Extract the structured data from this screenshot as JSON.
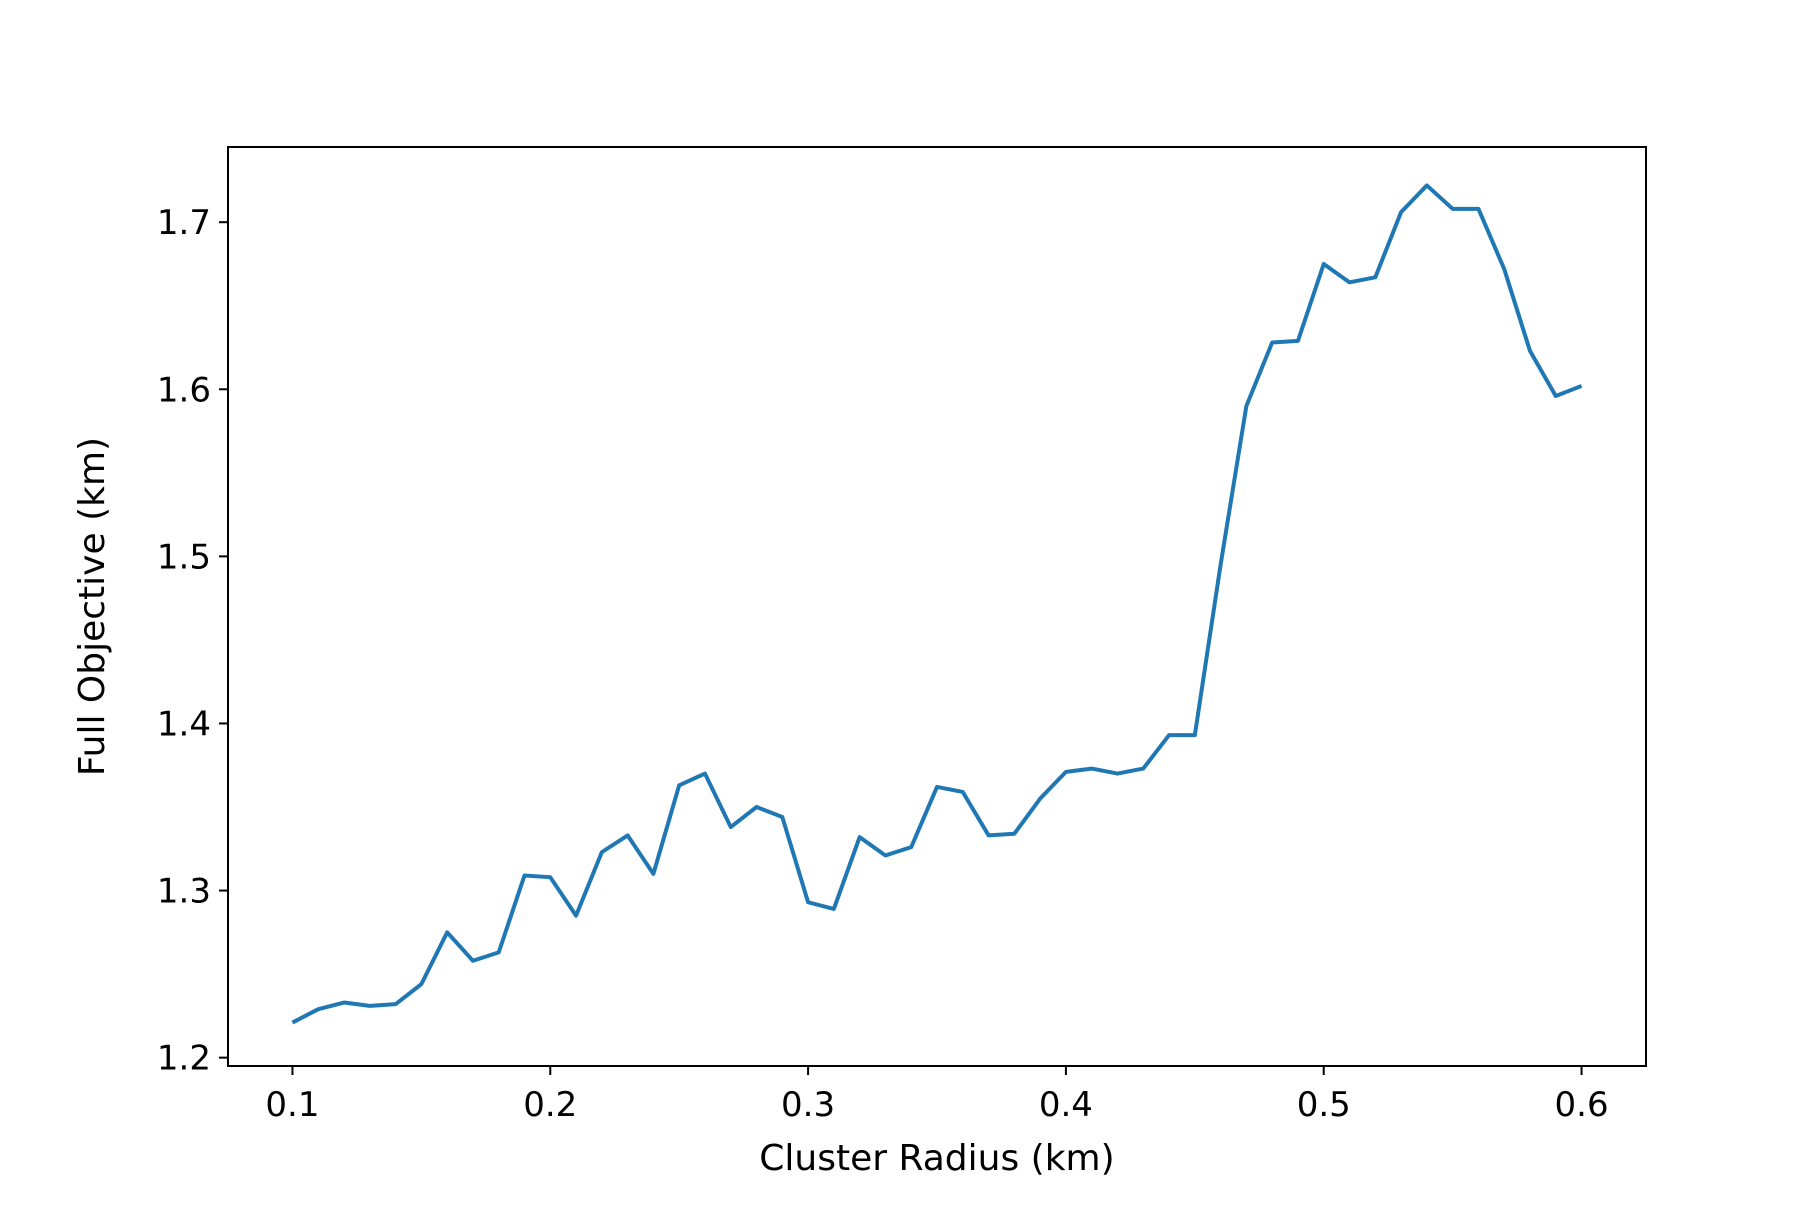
{
  "chart_data": {
    "type": "line",
    "title": "",
    "xlabel": "Cluster Radius (km)",
    "ylabel": "Full Objective (km)",
    "xlim": [
      0.075,
      0.625
    ],
    "ylim": [
      1.195,
      1.745
    ],
    "x_ticks": [
      0.1,
      0.2,
      0.3,
      0.4,
      0.5,
      0.6
    ],
    "x_tick_labels": [
      "0.1",
      "0.2",
      "0.3",
      "0.4",
      "0.5",
      "0.6"
    ],
    "y_ticks": [
      1.2,
      1.3,
      1.4,
      1.5,
      1.6,
      1.7
    ],
    "y_tick_labels": [
      "1.2",
      "1.3",
      "1.4",
      "1.5",
      "1.6",
      "1.7"
    ],
    "grid": false,
    "series": [
      {
        "color": "#1f77b4",
        "x": [
          0.1,
          0.11,
          0.12,
          0.13,
          0.14,
          0.15,
          0.16,
          0.17,
          0.18,
          0.19,
          0.2,
          0.21,
          0.22,
          0.23,
          0.24,
          0.25,
          0.26,
          0.27,
          0.28,
          0.29,
          0.3,
          0.31,
          0.32,
          0.33,
          0.34,
          0.35,
          0.36,
          0.37,
          0.38,
          0.39,
          0.4,
          0.41,
          0.42,
          0.43,
          0.44,
          0.45,
          0.46,
          0.47,
          0.48,
          0.49,
          0.5,
          0.51,
          0.52,
          0.53,
          0.54,
          0.55,
          0.56,
          0.57,
          0.58,
          0.59,
          0.6
        ],
        "y": [
          1.221,
          1.229,
          1.233,
          1.231,
          1.232,
          1.244,
          1.275,
          1.258,
          1.263,
          1.309,
          1.308,
          1.285,
          1.323,
          1.333,
          1.31,
          1.363,
          1.37,
          1.338,
          1.35,
          1.344,
          1.293,
          1.289,
          1.332,
          1.321,
          1.326,
          1.362,
          1.359,
          1.333,
          1.334,
          1.355,
          1.371,
          1.373,
          1.37,
          1.373,
          1.393,
          1.393,
          1.495,
          1.59,
          1.628,
          1.629,
          1.675,
          1.664,
          1.667,
          1.706,
          1.722,
          1.708,
          1.708,
          1.672,
          1.623,
          1.596,
          1.602
        ]
      }
    ]
  }
}
